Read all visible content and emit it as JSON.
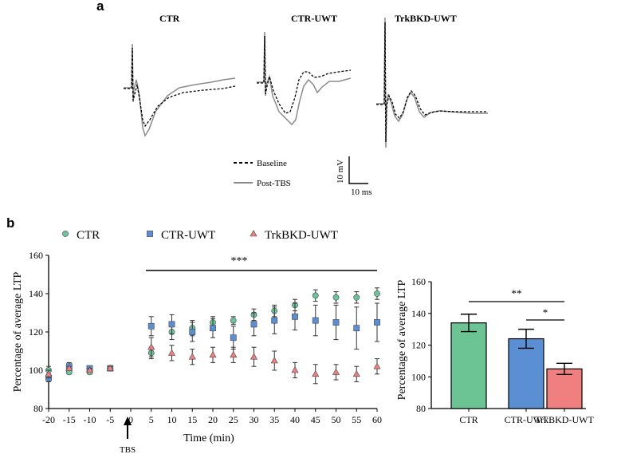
{
  "panels": {
    "a": "a",
    "b": "b"
  },
  "traces": {
    "titles": [
      "CTR",
      "CTR-UWT",
      "TrkBKD-UWT"
    ],
    "legend": {
      "baseline": "Baseline",
      "post": "Post-TBS"
    },
    "scale": {
      "v": "10 mV",
      "t": "10 ms"
    }
  },
  "chart_data": [
    {
      "type": "scatter",
      "title": "",
      "xlabel": "Time (min)",
      "ylabel": "Percentage of average LTP",
      "xlim": [
        -20,
        60
      ],
      "ylim": [
        80,
        160
      ],
      "x_ticks": [
        "-20",
        "-15",
        "-10",
        "-5",
        "0",
        "5",
        "10",
        "15",
        "20",
        "25",
        "30",
        "35",
        "40",
        "45",
        "50",
        "55",
        "60"
      ],
      "y_ticks": [
        "80",
        "100",
        "120",
        "140",
        "160"
      ],
      "x": [
        -20,
        -15,
        -10,
        -5,
        5,
        10,
        15,
        20,
        25,
        30,
        35,
        40,
        45,
        50,
        55,
        60
      ],
      "series": [
        {
          "name": "CTR",
          "marker": "circle",
          "color": "#6cc49a",
          "values": [
            100,
            99,
            99,
            101,
            109,
            120,
            122,
            125,
            126,
            129,
            131,
            134,
            139,
            138,
            138,
            140
          ],
          "errors": [
            2,
            1,
            1,
            1,
            3,
            4,
            4,
            3,
            2,
            3,
            3,
            3,
            3,
            3,
            3,
            3
          ]
        },
        {
          "name": "CTR-UWT",
          "marker": "square",
          "color": "#5b8fd4",
          "values": [
            96,
            102,
            101,
            101,
            123,
            124,
            120,
            122,
            117,
            124,
            126,
            128,
            126,
            125,
            122,
            125
          ],
          "errors": [
            2,
            2,
            1,
            1,
            5,
            5,
            5,
            5,
            6,
            6,
            7,
            7,
            8,
            9,
            11,
            10
          ]
        },
        {
          "name": "TrkBKD-UWT",
          "marker": "triangle",
          "color": "#f08080",
          "values": [
            98,
            101,
            100,
            101,
            112,
            109,
            107,
            108,
            108,
            107,
            105,
            100,
            98,
            99,
            98,
            102
          ],
          "errors": [
            2,
            1,
            1,
            1,
            5,
            4,
            4,
            4,
            4,
            5,
            5,
            4,
            5,
            4,
            4,
            4
          ]
        }
      ],
      "annotations": {
        "significance": "***",
        "arrow_label": "TBS"
      }
    },
    {
      "type": "bar",
      "title": "",
      "xlabel": "",
      "ylabel": "Percentage of average LTP",
      "ylim": [
        80,
        160
      ],
      "y_ticks": [
        "80",
        "100",
        "120",
        "140",
        "160"
      ],
      "categories": [
        "CTR",
        "CTR-UWT",
        "TrkBKD-UWT"
      ],
      "values": [
        134,
        124,
        105
      ],
      "errors": [
        5.5,
        6,
        3.5
      ],
      "colors": [
        "#6cc495",
        "#5b8fd4",
        "#f08080"
      ],
      "annotations": {
        "sig_ctr_vs_trkbkd": "**",
        "sig_uwt_vs_trkbkd": "*"
      }
    }
  ]
}
